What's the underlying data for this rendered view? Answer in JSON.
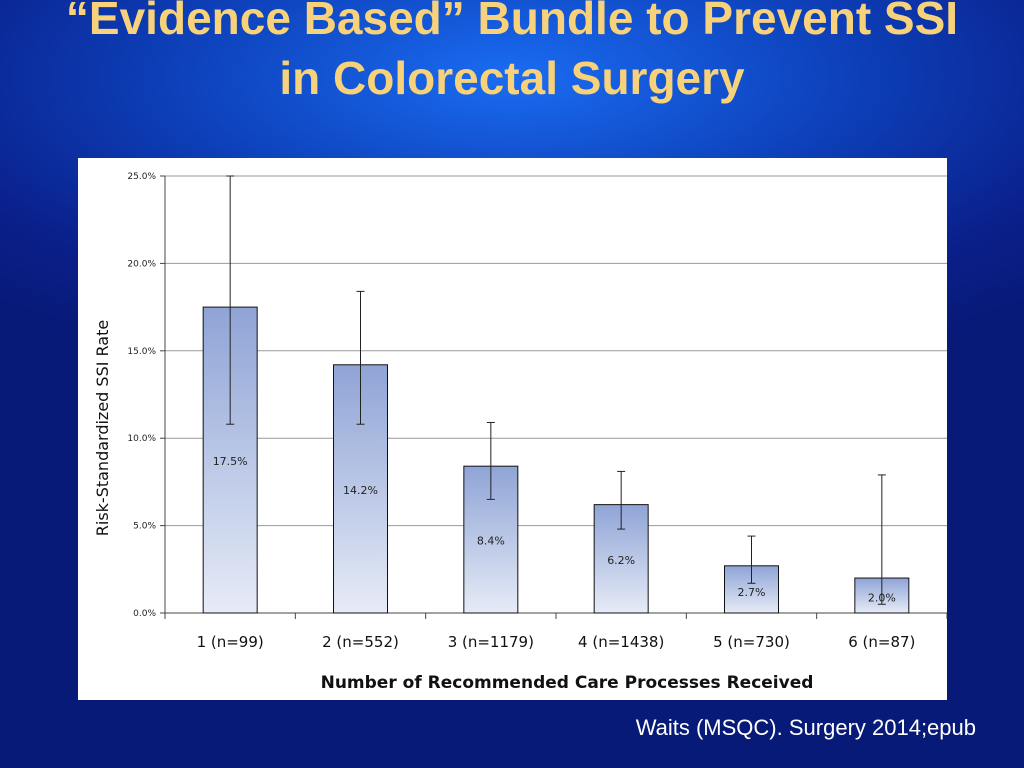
{
  "slide": {
    "title": "“Evidence Based” Bundle to Prevent SSI in Colorectal Surgery",
    "citation": "Waits (MSQC). Surgery 2014;epub"
  },
  "colors": {
    "background": "#0a1f8a",
    "title": "#f7d27a",
    "bar_top": "#8fa4d6",
    "bar_bottom": "#e6ebf6",
    "bar_border": "#111111",
    "grid": "#9a9a9a"
  },
  "chart_data": {
    "type": "bar",
    "title": "",
    "xlabel": "Number of Recommended Care Processes Received",
    "ylabel": "Risk-Standardized SSI Rate",
    "ylim": [
      0,
      25
    ],
    "yticks": [
      0,
      5,
      10,
      15,
      20,
      25
    ],
    "ytick_labels": [
      "0.0%",
      "5.0%",
      "10.0%",
      "15.0%",
      "20.0%",
      "25.0%"
    ],
    "grid": true,
    "categories": [
      "1 (n=99)",
      "2 (n=552)",
      "3 (n=1179)",
      "4 (n=1438)",
      "5 (n=730)",
      "6 (n=87)"
    ],
    "values": [
      17.5,
      14.2,
      8.4,
      6.2,
      2.7,
      2.0
    ],
    "value_labels": [
      "17.5%",
      "14.2%",
      "8.4%",
      "6.2%",
      "2.7%",
      "2.0%"
    ],
    "error_low": [
      10.8,
      10.8,
      6.5,
      4.8,
      1.7,
      0.5
    ],
    "error_high": [
      25.0,
      18.4,
      10.9,
      8.1,
      4.4,
      7.9
    ]
  }
}
